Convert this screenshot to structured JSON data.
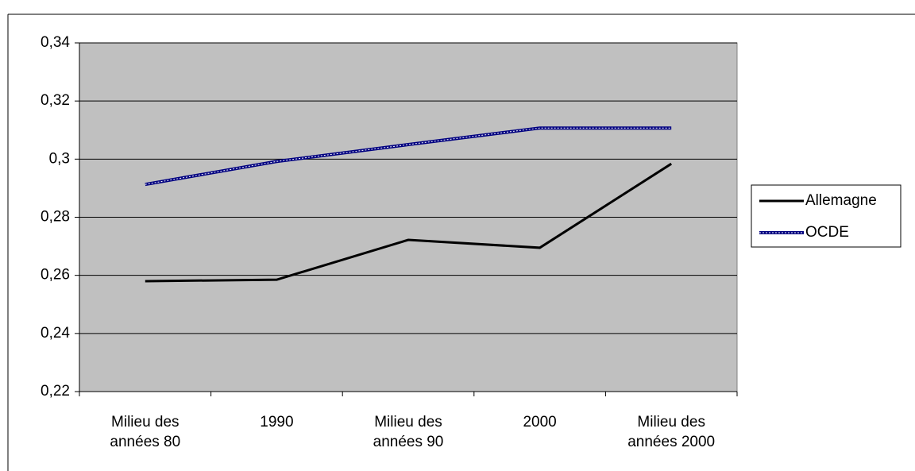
{
  "chart_data": {
    "type": "line",
    "categories": [
      "Milieu des années 80",
      "1990",
      "Milieu des années 90",
      "2000",
      "Milieu des années 2000"
    ],
    "series": [
      {
        "name": "Allemagne",
        "color": "#000000",
        "values": [
          0.258,
          0.2585,
          0.2722,
          0.2695,
          0.2984
        ]
      },
      {
        "name": "OCDE",
        "color": "#000080",
        "values": [
          0.2913,
          0.2992,
          0.305,
          0.3107,
          0.3107
        ]
      }
    ],
    "ylim": [
      0.22,
      0.34
    ],
    "yticks": [
      {
        "value": 0.22,
        "label": "0,22"
      },
      {
        "value": 0.24,
        "label": "0,24"
      },
      {
        "value": 0.26,
        "label": "0,26"
      },
      {
        "value": 0.28,
        "label": "0,28"
      },
      {
        "value": 0.3,
        "label": "0,3"
      },
      {
        "value": 0.32,
        "label": "0,32"
      },
      {
        "value": 0.34,
        "label": "0,34"
      }
    ],
    "grid": true,
    "legend": "right"
  }
}
